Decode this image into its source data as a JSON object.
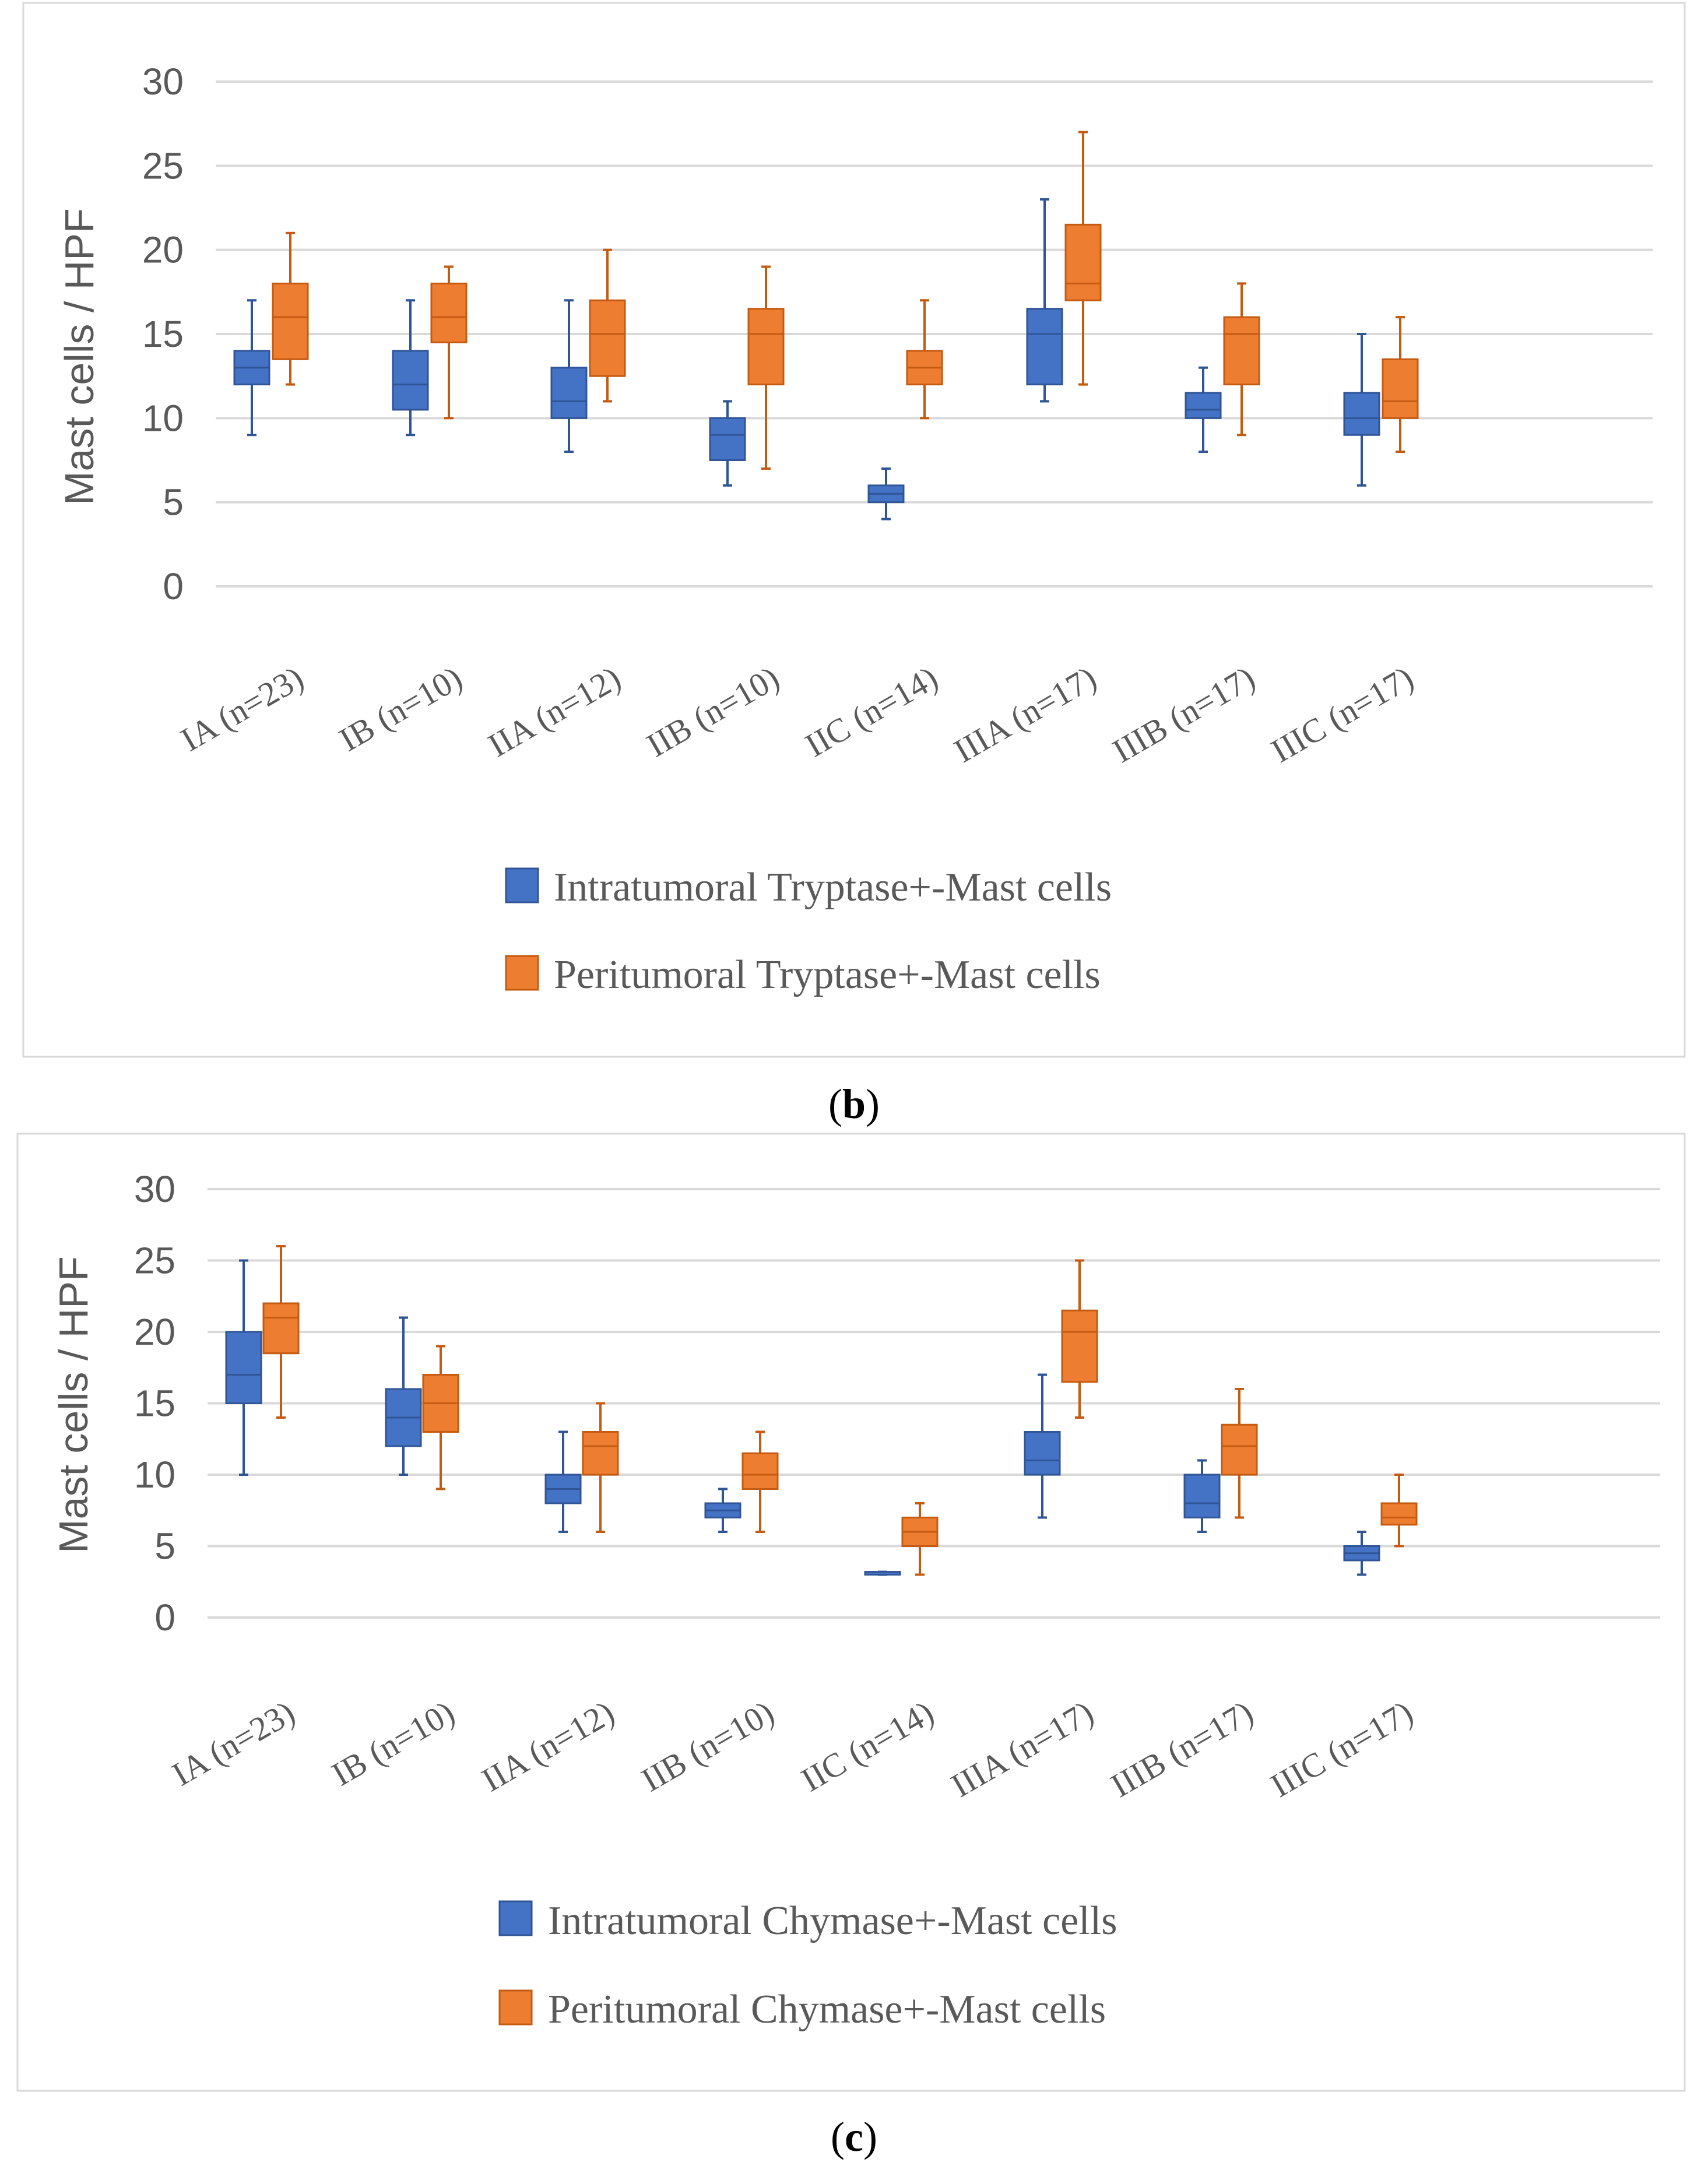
{
  "colors": {
    "intratumoral": "#4472C4",
    "intratumoral_stroke": "#2F5597",
    "peritumoral": "#ED7D31",
    "peritumoral_stroke": "#C55A11",
    "grid": "#D9D9D9",
    "text": "#595959"
  },
  "chart_data": [
    {
      "type": "box",
      "panel_label": "b",
      "ylabel": "Mast cells / HPF",
      "ylim": [
        0,
        30
      ],
      "yticks": [
        0,
        5,
        10,
        15,
        20,
        25,
        30
      ],
      "categories": [
        "IA (n=23)",
        "IB (n=10)",
        "IIA (n=12)",
        "IIB (n=10)",
        "IIC (n=14)",
        "IIIA (n=17)",
        "IIIB (n=17)",
        "IIIC (n=17)"
      ],
      "legend": "bottom",
      "series": [
        {
          "name": "Intratumoral Tryptase+-Mast cells",
          "color_key": "intratumoral",
          "boxes": [
            {
              "min": 9,
              "q1": 12,
              "median": 13,
              "q3": 14,
              "max": 17
            },
            {
              "min": 9,
              "q1": 10.5,
              "median": 12,
              "q3": 14,
              "max": 17
            },
            {
              "min": 8,
              "q1": 10,
              "median": 11,
              "q3": 13,
              "max": 17
            },
            {
              "min": 6,
              "q1": 7.5,
              "median": 9,
              "q3": 10,
              "max": 11
            },
            {
              "min": 4,
              "q1": 5,
              "median": 5.5,
              "q3": 6,
              "max": 7
            },
            {
              "min": 11,
              "q1": 12,
              "median": 15,
              "q3": 16.5,
              "max": 23
            },
            {
              "min": 8,
              "q1": 10,
              "median": 10.5,
              "q3": 11.5,
              "max": 13
            },
            {
              "min": 6,
              "q1": 9,
              "median": 10,
              "q3": 11.5,
              "max": 15
            }
          ]
        },
        {
          "name": "Peritumoral Tryptase+-Mast cells",
          "color_key": "peritumoral",
          "boxes": [
            {
              "min": 12,
              "q1": 13.5,
              "median": 16,
              "q3": 18,
              "max": 21
            },
            {
              "min": 10,
              "q1": 14.5,
              "median": 16,
              "q3": 18,
              "max": 19
            },
            {
              "min": 11,
              "q1": 12.5,
              "median": 15,
              "q3": 17,
              "max": 20
            },
            {
              "min": 7,
              "q1": 12,
              "median": 15,
              "q3": 16.5,
              "max": 19
            },
            {
              "min": 10,
              "q1": 12,
              "median": 13,
              "q3": 14,
              "max": 17
            },
            {
              "min": 12,
              "q1": 17,
              "median": 18,
              "q3": 21.5,
              "max": 27
            },
            {
              "min": 9,
              "q1": 12,
              "median": 15,
              "q3": 16,
              "max": 18
            },
            {
              "min": 8,
              "q1": 10,
              "median": 11,
              "q3": 13.5,
              "max": 16
            }
          ]
        }
      ]
    },
    {
      "type": "box",
      "panel_label": "c",
      "ylabel": "Mast cells / HPF",
      "ylim": [
        0,
        30
      ],
      "yticks": [
        0,
        5,
        10,
        15,
        20,
        25,
        30
      ],
      "categories": [
        "IA (n=23)",
        "IB (n=10)",
        "IIA (n=12)",
        "IIB (n=10)",
        "IIC (n=14)",
        "IIIA (n=17)",
        "IIIB (n=17)",
        "IIIC (n=17)"
      ],
      "legend": "bottom",
      "series": [
        {
          "name": "Intratumoral Chymase+-Mast cells",
          "color_key": "intratumoral",
          "boxes": [
            {
              "min": 10,
              "q1": 15,
              "median": 17,
              "q3": 20,
              "max": 25
            },
            {
              "min": 10,
              "q1": 12,
              "median": 14,
              "q3": 16,
              "max": 21
            },
            {
              "min": 6,
              "q1": 8,
              "median": 9,
              "q3": 10,
              "max": 13
            },
            {
              "min": 6,
              "q1": 7,
              "median": 7.5,
              "q3": 8,
              "max": 9
            },
            {
              "min": 3,
              "q1": 3,
              "median": 3,
              "q3": 3.2,
              "max": 3.2
            },
            {
              "min": 7,
              "q1": 10,
              "median": 11,
              "q3": 13,
              "max": 17
            },
            {
              "min": 6,
              "q1": 7,
              "median": 8,
              "q3": 10,
              "max": 11
            },
            {
              "min": 3,
              "q1": 4,
              "median": 4.5,
              "q3": 5,
              "max": 6
            }
          ]
        },
        {
          "name": "Peritumoral Chymase+-Mast cells",
          "color_key": "peritumoral",
          "boxes": [
            {
              "min": 14,
              "q1": 18.5,
              "median": 21,
              "q3": 22,
              "max": 26
            },
            {
              "min": 9,
              "q1": 13,
              "median": 15,
              "q3": 17,
              "max": 19
            },
            {
              "min": 6,
              "q1": 10,
              "median": 12,
              "q3": 13,
              "max": 15
            },
            {
              "min": 6,
              "q1": 9,
              "median": 10,
              "q3": 11.5,
              "max": 13
            },
            {
              "min": 3,
              "q1": 5,
              "median": 6,
              "q3": 7,
              "max": 8
            },
            {
              "min": 14,
              "q1": 16.5,
              "median": 20,
              "q3": 21.5,
              "max": 25
            },
            {
              "min": 7,
              "q1": 10,
              "median": 12,
              "q3": 13.5,
              "max": 16
            },
            {
              "min": 5,
              "q1": 6.5,
              "median": 7,
              "q3": 8,
              "max": 10
            }
          ]
        }
      ]
    }
  ]
}
